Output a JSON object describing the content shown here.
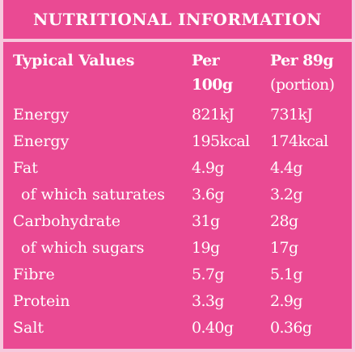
{
  "title": "NUTRITIONAL INFORMATION",
  "columns": {
    "label": "Typical Values",
    "per100_line1": "Per",
    "per100_line2": "100g",
    "portion_line1": "Per 89g",
    "portion_line2": "(portion)"
  },
  "rows": [
    {
      "label": "Energy",
      "per100": "821kJ",
      "portion": "731kJ",
      "indent": false
    },
    {
      "label": "Energy",
      "per100": "195kcal",
      "portion": "174kcal",
      "indent": false
    },
    {
      "label": "Fat",
      "per100": "4.9g",
      "portion": "4.4g",
      "indent": false
    },
    {
      "label": "of which saturates",
      "per100": "3.6g",
      "portion": "3.2g",
      "indent": true
    },
    {
      "label": "Carbohydrate",
      "per100": "31g",
      "portion": "28g",
      "indent": false
    },
    {
      "label": "of which sugars",
      "per100": "19g",
      "portion": "17g",
      "indent": true
    },
    {
      "label": "Fibre",
      "per100": "5.7g",
      "portion": "5.1g",
      "indent": false
    },
    {
      "label": "Protein",
      "per100": "3.3g",
      "portion": "2.9g",
      "indent": false
    },
    {
      "label": "Salt",
      "per100": "0.40g",
      "portion": "0.36g",
      "indent": false
    }
  ],
  "colors": {
    "background": "#ea4a93",
    "border": "#f6c9dd",
    "text": "#ffffff"
  }
}
